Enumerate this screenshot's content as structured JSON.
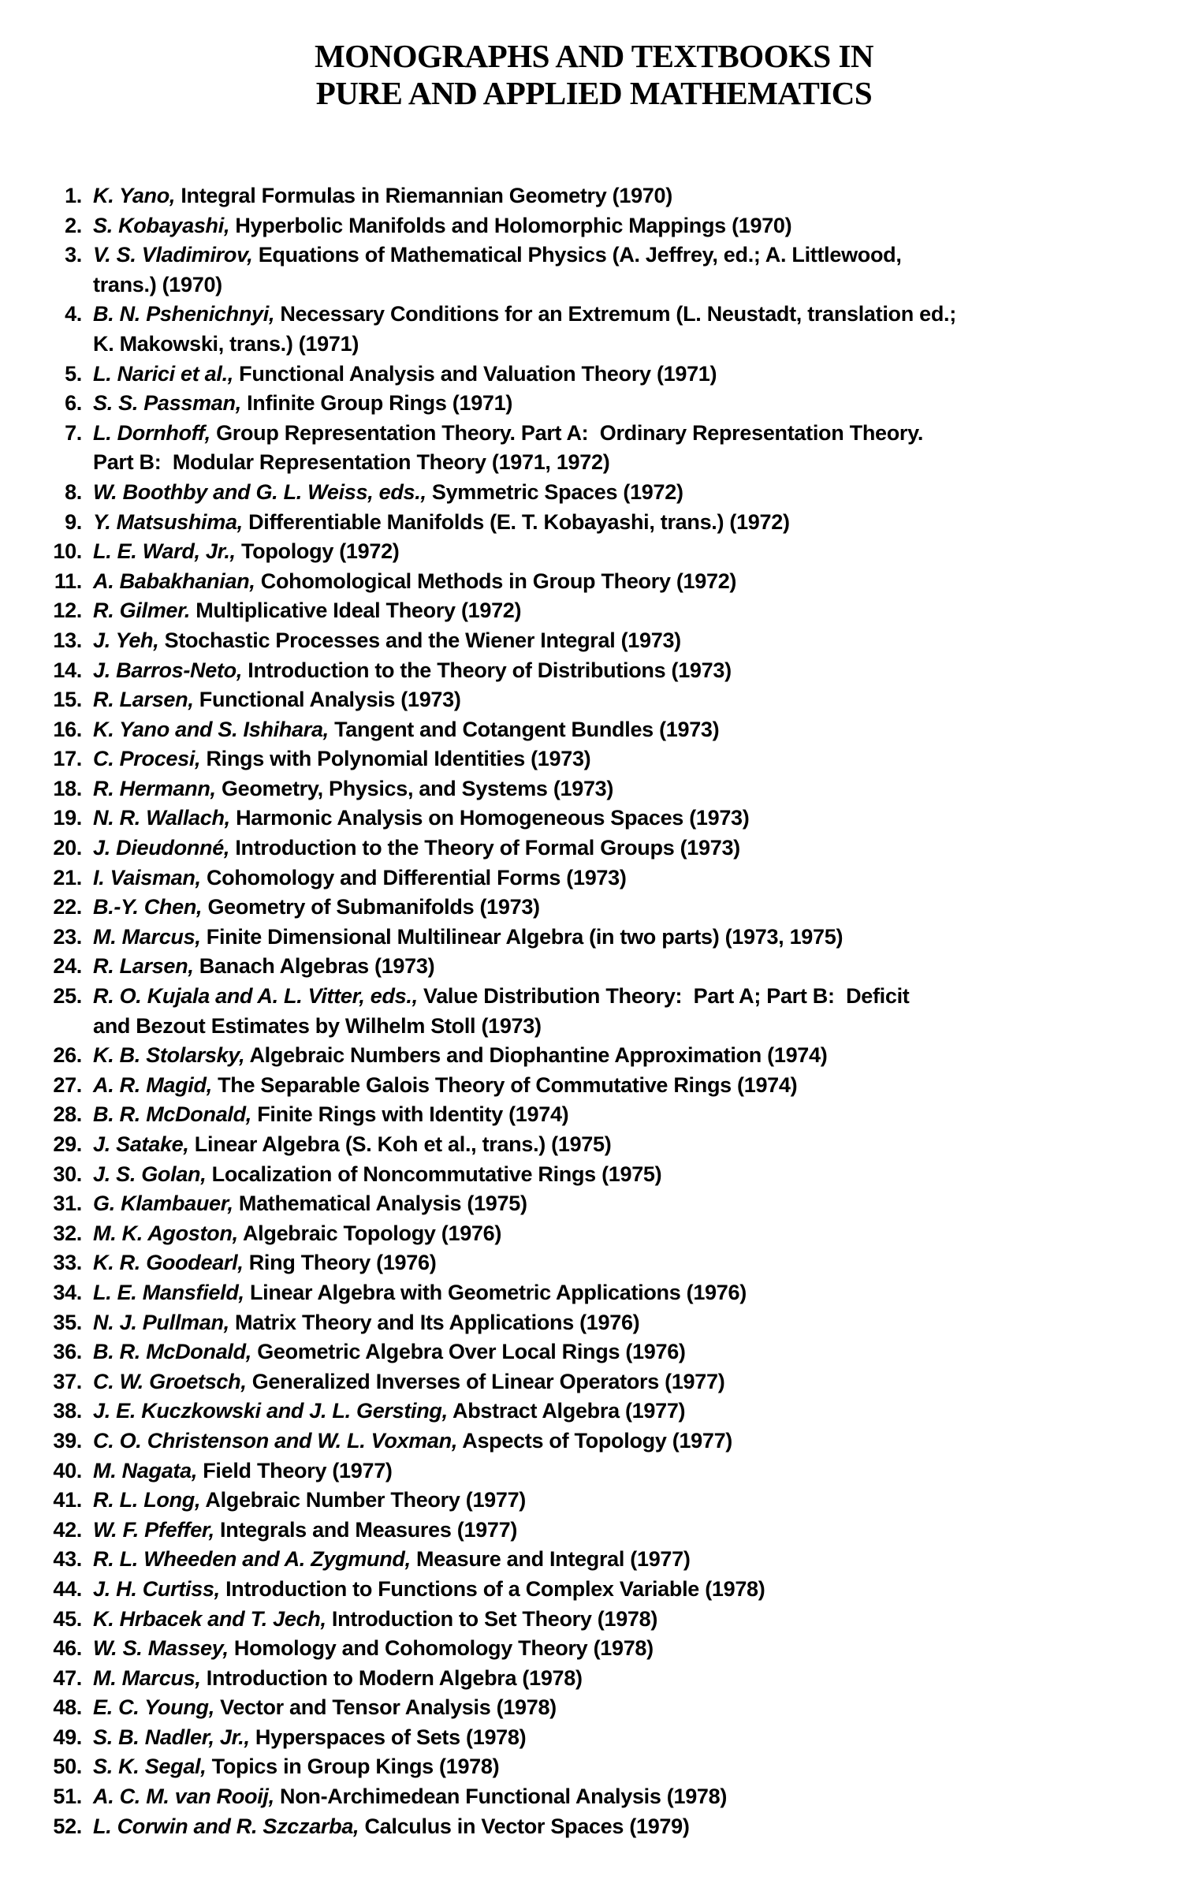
{
  "header": {
    "title_line1": "MONOGRAPHS AND TEXTBOOKS IN",
    "title_line2": "PURE AND APPLIED MATHEMATICS"
  },
  "list": {
    "items": [
      {
        "number": "1.",
        "author": "K. Yano,",
        "text": "Integral Formulas in Riemannian Geometry (1970)"
      },
      {
        "number": "2.",
        "author": "S. Kobayashi,",
        "text": "Hyperbolic Manifolds and Holomorphic Mappings (1970)"
      },
      {
        "number": "3.",
        "author": "V. S. Vladimirov,",
        "text": "Equations of Mathematical Physics (A. Jeffrey, ed.; A. Littlewood,\ntrans.) (1970)"
      },
      {
        "number": "4.",
        "author": "B. N. Pshenichnyi,",
        "text": "Necessary Conditions for an Extremum (L. Neustadt, translation ed.;\nK. Makowski, trans.) (1971)"
      },
      {
        "number": "5.",
        "author": "L. Narici et al.,",
        "text": "Functional Analysis and Valuation Theory (1971)"
      },
      {
        "number": "6.",
        "author": "S. S. Passman,",
        "text": "Infinite Group Rings (1971)"
      },
      {
        "number": "7.",
        "author": "L. Dornhoff,",
        "text": "Group Representation Theory. Part A:  Ordinary Representation Theory.\nPart B:  Modular Representation Theory (1971, 1972)"
      },
      {
        "number": "8.",
        "author": "W. Boothby and G. L. Weiss, eds.,",
        "text": "Symmetric Spaces (1972)"
      },
      {
        "number": "9.",
        "author": "Y. Matsushima,",
        "text": "Differentiable Manifolds (E. T. Kobayashi, trans.) (1972)"
      },
      {
        "number": "10.",
        "author": "L. E. Ward, Jr.,",
        "text": "Topology (1972)"
      },
      {
        "number": "11.",
        "author": "A. Babakhanian,",
        "text": "Cohomological Methods in Group Theory (1972)"
      },
      {
        "number": "12.",
        "author": "R. Gilmer.",
        "text": "Multiplicative Ideal Theory (1972)"
      },
      {
        "number": "13.",
        "author": "J. Yeh,",
        "text": "Stochastic Processes and the Wiener Integral (1973)"
      },
      {
        "number": "14.",
        "author": "J. Barros-Neto,",
        "text": "Introduction to the Theory of Distributions (1973)"
      },
      {
        "number": "15.",
        "author": "R. Larsen,",
        "text": "Functional Analysis (1973)"
      },
      {
        "number": "16.",
        "author": "K. Yano and S. Ishihara,",
        "text": "Tangent and Cotangent Bundles (1973)"
      },
      {
        "number": "17.",
        "author": "C. Procesi,",
        "text": "Rings with Polynomial Identities (1973)"
      },
      {
        "number": "18.",
        "author": "R. Hermann,",
        "text": "Geometry, Physics, and Systems (1973)"
      },
      {
        "number": "19.",
        "author": "N. R. Wallach,",
        "text": "Harmonic Analysis on Homogeneous Spaces (1973)"
      },
      {
        "number": "20.",
        "author": "J. Dieudonné,",
        "text": "Introduction to the Theory of Formal Groups (1973)"
      },
      {
        "number": "21.",
        "author": "I. Vaisman,",
        "text": "Cohomology and Differential Forms (1973)"
      },
      {
        "number": "22.",
        "author": "B.-Y. Chen,",
        "text": "Geometry of Submanifolds (1973)"
      },
      {
        "number": "23.",
        "author": "M. Marcus,",
        "text": "Finite Dimensional Multilinear Algebra (in two parts) (1973, 1975)"
      },
      {
        "number": "24.",
        "author": "R. Larsen,",
        "text": "Banach Algebras (1973)"
      },
      {
        "number": "25.",
        "author": "R. O. Kujala and A. L. Vitter, eds.,",
        "text": "Value Distribution Theory:  Part A; Part B:  Deficit\nand Bezout Estimates by Wilhelm Stoll (1973)"
      },
      {
        "number": "26.",
        "author": "K. B. Stolarsky,",
        "text": "Algebraic Numbers and Diophantine Approximation (1974)"
      },
      {
        "number": "27.",
        "author": "A. R. Magid,",
        "text": "The Separable Galois Theory of Commutative Rings (1974)"
      },
      {
        "number": "28.",
        "author": "B. R. McDonald,",
        "text": "Finite Rings with Identity (1974)"
      },
      {
        "number": "29.",
        "author": "J. Satake,",
        "text": "Linear Algebra (S. Koh et al., trans.) (1975)"
      },
      {
        "number": "30.",
        "author": "J. S. Golan,",
        "text": "Localization of Noncommutative Rings (1975)"
      },
      {
        "number": "31.",
        "author": "G. Klambauer,",
        "text": "Mathematical Analysis (1975)"
      },
      {
        "number": "32.",
        "author": "M. K. Agoston,",
        "text": "Algebraic Topology (1976)"
      },
      {
        "number": "33.",
        "author": "K. R. Goodearl,",
        "text": "Ring Theory (1976)"
      },
      {
        "number": "34.",
        "author": "L. E. Mansfield,",
        "text": "Linear Algebra with Geometric Applications (1976)"
      },
      {
        "number": "35.",
        "author": "N. J. Pullman,",
        "text": "Matrix Theory and Its Applications (1976)"
      },
      {
        "number": "36.",
        "author": "B. R. McDonald,",
        "text": "Geometric Algebra Over Local Rings (1976)"
      },
      {
        "number": "37.",
        "author": "C. W. Groetsch,",
        "text": "Generalized Inverses of Linear Operators (1977)"
      },
      {
        "number": "38.",
        "author": "J. E. Kuczkowski and J. L. Gersting,",
        "text": "Abstract Algebra (1977)"
      },
      {
        "number": "39.",
        "author": "C. O. Christenson and W. L. Voxman,",
        "text": "Aspects of Topology (1977)"
      },
      {
        "number": "40.",
        "author": "M. Nagata,",
        "text": "Field Theory (1977)"
      },
      {
        "number": "41.",
        "author": "R. L. Long,",
        "text": "Algebraic Number Theory (1977)"
      },
      {
        "number": "42.",
        "author": "W. F. Pfeffer,",
        "text": "Integrals and Measures (1977)"
      },
      {
        "number": "43.",
        "author": "R. L. Wheeden and A. Zygmund,",
        "text": "Measure and Integral (1977)"
      },
      {
        "number": "44.",
        "author": "J. H. Curtiss,",
        "text": "Introduction to Functions of a Complex Variable (1978)"
      },
      {
        "number": "45.",
        "author": "K. Hrbacek and T. Jech,",
        "text": "Introduction to Set Theory (1978)"
      },
      {
        "number": "46.",
        "author": "W. S. Massey,",
        "text": "Homology and Cohomology Theory (1978)"
      },
      {
        "number": "47.",
        "author": "M. Marcus,",
        "text": "Introduction to Modern Algebra (1978)"
      },
      {
        "number": "48.",
        "author": "E. C. Young,",
        "text": "Vector and Tensor Analysis (1978)"
      },
      {
        "number": "49.",
        "author": "S. B. Nadler, Jr.,",
        "text": "Hyperspaces of Sets (1978)"
      },
      {
        "number": "50.",
        "author": "S. K. Segal,",
        "text": "Topics in Group Kings (1978)"
      },
      {
        "number": "51.",
        "author": "A. C. M. van Rooij,",
        "text": "Non-Archimedean Functional Analysis (1978)"
      },
      {
        "number": "52.",
        "author": "L. Corwin and R. Szczarba,",
        "text": "Calculus in Vector Spaces (1979)"
      }
    ]
  }
}
